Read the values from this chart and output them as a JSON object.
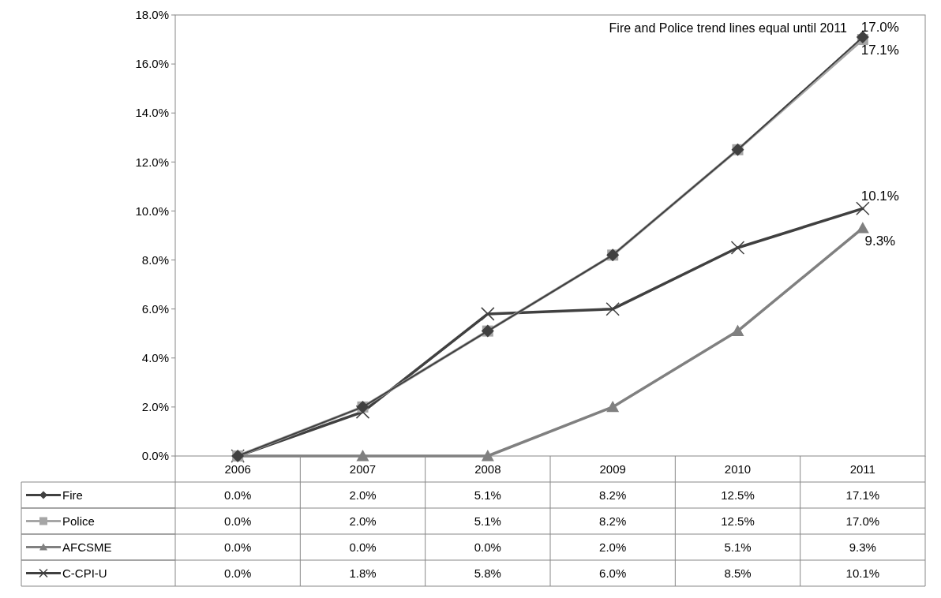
{
  "chart_data": {
    "type": "line",
    "categories": [
      "2006",
      "2007",
      "2008",
      "2009",
      "2010",
      "2011"
    ],
    "series": [
      {
        "name": "Fire",
        "color": "#404040",
        "marker": "diamond",
        "values": [
          0.0,
          2.0,
          5.1,
          8.2,
          12.5,
          17.1
        ],
        "value_labels": [
          "0.0%",
          "2.0%",
          "5.1%",
          "8.2%",
          "12.5%",
          "17.1%"
        ]
      },
      {
        "name": "Police",
        "color": "#a6a6a6",
        "marker": "square",
        "values": [
          0.0,
          2.0,
          5.1,
          8.2,
          12.5,
          17.0
        ],
        "value_labels": [
          "0.0%",
          "2.0%",
          "5.1%",
          "8.2%",
          "12.5%",
          "17.0%"
        ]
      },
      {
        "name": "AFCSME",
        "color": "#808080",
        "marker": "triangle",
        "values": [
          0.0,
          0.0,
          0.0,
          2.0,
          5.1,
          9.3
        ],
        "value_labels": [
          "0.0%",
          "0.0%",
          "0.0%",
          "2.0%",
          "5.1%",
          "9.3%"
        ]
      },
      {
        "name": "C-CPI-U",
        "color": "#404040",
        "marker": "cross",
        "values": [
          0.0,
          1.8,
          5.8,
          6.0,
          8.5,
          10.1
        ],
        "value_labels": [
          "0.0%",
          "1.8%",
          "5.8%",
          "6.0%",
          "8.5%",
          "10.1%"
        ]
      }
    ],
    "ylim": [
      0,
      18
    ],
    "yticks": [
      {
        "value": 0,
        "label": "0.0%"
      },
      {
        "value": 2,
        "label": "2.0%"
      },
      {
        "value": 4,
        "label": "4.0%"
      },
      {
        "value": 6,
        "label": "6.0%"
      },
      {
        "value": 8,
        "label": "8.0%"
      },
      {
        "value": 10,
        "label": "10.0%"
      },
      {
        "value": 12,
        "label": "12.0%"
      },
      {
        "value": 14,
        "label": "14.0%"
      },
      {
        "value": 16,
        "label": "16.0%"
      },
      {
        "value": 18,
        "label": "18.0%"
      }
    ],
    "legend": "bottom",
    "annotations": [
      "Fire and Police trend lines equal until 2011",
      {
        "text": "17.0%",
        "x": "2011",
        "y": 17.0
      },
      {
        "text": "17.1%",
        "x": "2011",
        "y": 17.1
      },
      {
        "text": "10.1%",
        "x": "2011",
        "y": 10.1
      },
      {
        "text": "9.3%",
        "x": "2011",
        "y": 9.3
      }
    ]
  }
}
